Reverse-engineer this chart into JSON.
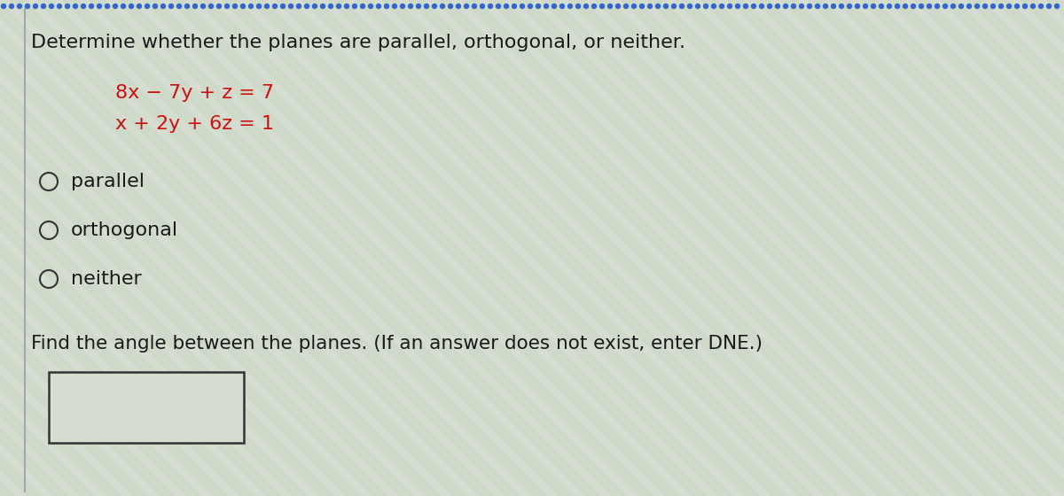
{
  "title": "Determine whether the planes are parallel, orthogonal, or neither.",
  "title_color": "#1a1a1a",
  "title_fontsize": 16,
  "eq1": "8x − 7y + z = 7",
  "eq2": "x + 2y + 6z = 1",
  "eq_color": "#cc1111",
  "eq_fontsize": 16,
  "options": [
    "parallel",
    "orthogonal",
    "neither"
  ],
  "option_fontsize": 16,
  "option_color": "#1a1a1a",
  "find_text": "Find the angle between the planes. (If an answer does not exist, enter DNE.)",
  "find_fontsize": 15.5,
  "find_color": "#1a1a1a",
  "bg_stripe_color1": "#d8dfd4",
  "bg_stripe_color2": "#c8d4c0",
  "panel_bg": "#d4ddd0",
  "dot_line_color": "#3366cc",
  "left_border_color": "#999aaa",
  "circle_edge_color": "#333333",
  "box_edge_color": "#333333",
  "box_fill": "#d4ddd0"
}
